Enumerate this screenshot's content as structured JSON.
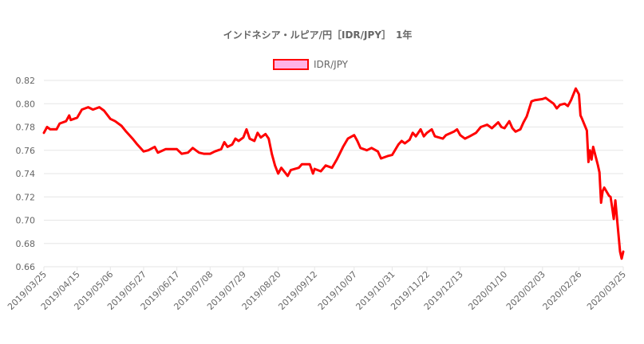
{
  "chart_data": {
    "type": "line",
    "title": "インドネシア・ルピア/円［IDR/JPY］　1年",
    "legend": {
      "placement": "top-center",
      "label": "IDR/JPY"
    },
    "colors": {
      "line": "#ff0000",
      "legend_fill": "#ffb3e6",
      "legend_border": "#ff0000"
    },
    "ylim": [
      0.66,
      0.82
    ],
    "yticks": [
      "0.82",
      "0.80",
      "0.78",
      "0.76",
      "0.74",
      "0.72",
      "0.70",
      "0.68",
      "0.66"
    ],
    "xticks": [
      "2019/03/25",
      "2019/04/15",
      "2019/05/06",
      "2019/05/27",
      "2019/06/17",
      "2019/07/08",
      "2019/07/29",
      "2019/08/20",
      "2019/09/12",
      "2019/10/07",
      "2019/10/31",
      "2019/11/22",
      "2019/12/13",
      "2020/01/10",
      "2020/02/03",
      "2020/02/26",
      "2020/03/25"
    ],
    "grid": true,
    "series": [
      {
        "name": "IDR/JPY",
        "points": [
          [
            "2019/03/25",
            0.775
          ],
          [
            "2019/03/27",
            0.78
          ],
          [
            "2019/03/29",
            0.778
          ],
          [
            "2019/04/02",
            0.778
          ],
          [
            "2019/04/04",
            0.783
          ],
          [
            "2019/04/08",
            0.785
          ],
          [
            "2019/04/10",
            0.79
          ],
          [
            "2019/04/11",
            0.786
          ],
          [
            "2019/04/15",
            0.788
          ],
          [
            "2019/04/18",
            0.795
          ],
          [
            "2019/04/22",
            0.797
          ],
          [
            "2019/04/25",
            0.795
          ],
          [
            "2019/04/29",
            0.797
          ],
          [
            "2019/05/02",
            0.794
          ],
          [
            "2019/05/06",
            0.787
          ],
          [
            "2019/05/09",
            0.785
          ],
          [
            "2019/05/13",
            0.781
          ],
          [
            "2019/05/16",
            0.776
          ],
          [
            "2019/05/20",
            0.77
          ],
          [
            "2019/05/23",
            0.765
          ],
          [
            "2019/05/27",
            0.759
          ],
          [
            "2019/05/30",
            0.76
          ],
          [
            "2019/06/03",
            0.763
          ],
          [
            "2019/06/05",
            0.758
          ],
          [
            "2019/06/10",
            0.761
          ],
          [
            "2019/06/17",
            0.761
          ],
          [
            "2019/06/20",
            0.757
          ],
          [
            "2019/06/24",
            0.758
          ],
          [
            "2019/06/27",
            0.762
          ],
          [
            "2019/07/01",
            0.758
          ],
          [
            "2019/07/04",
            0.757
          ],
          [
            "2019/07/08",
            0.757
          ],
          [
            "2019/07/11",
            0.759
          ],
          [
            "2019/07/15",
            0.761
          ],
          [
            "2019/07/17",
            0.767
          ],
          [
            "2019/07/19",
            0.763
          ],
          [
            "2019/07/22",
            0.765
          ],
          [
            "2019/07/24",
            0.77
          ],
          [
            "2019/07/26",
            0.768
          ],
          [
            "2019/07/29",
            0.771
          ],
          [
            "2019/07/31",
            0.778
          ],
          [
            "2019/08/02",
            0.77
          ],
          [
            "2019/08/05",
            0.768
          ],
          [
            "2019/08/07",
            0.775
          ],
          [
            "2019/08/09",
            0.771
          ],
          [
            "2019/08/12",
            0.774
          ],
          [
            "2019/08/14",
            0.77
          ],
          [
            "2019/08/16",
            0.757
          ],
          [
            "2019/08/18",
            0.747
          ],
          [
            "2019/08/20",
            0.74
          ],
          [
            "2019/08/22",
            0.745
          ],
          [
            "2019/08/26",
            0.738
          ],
          [
            "2019/08/28",
            0.743
          ],
          [
            "2019/09/02",
            0.745
          ],
          [
            "2019/09/04",
            0.748
          ],
          [
            "2019/09/09",
            0.748
          ],
          [
            "2019/09/11",
            0.74
          ],
          [
            "2019/09/12",
            0.744
          ],
          [
            "2019/09/16",
            0.742
          ],
          [
            "2019/09/19",
            0.747
          ],
          [
            "2019/09/23",
            0.745
          ],
          [
            "2019/09/26",
            0.752
          ],
          [
            "2019/09/30",
            0.763
          ],
          [
            "2019/10/03",
            0.77
          ],
          [
            "2019/10/07",
            0.773
          ],
          [
            "2019/10/09",
            0.768
          ],
          [
            "2019/10/11",
            0.762
          ],
          [
            "2019/10/15",
            0.76
          ],
          [
            "2019/10/18",
            0.762
          ],
          [
            "2019/10/22",
            0.759
          ],
          [
            "2019/10/24",
            0.753
          ],
          [
            "2019/10/28",
            0.755
          ],
          [
            "2019/10/31",
            0.756
          ],
          [
            "2019/11/04",
            0.765
          ],
          [
            "2019/11/06",
            0.768
          ],
          [
            "2019/11/08",
            0.766
          ],
          [
            "2019/11/11",
            0.769
          ],
          [
            "2019/11/13",
            0.775
          ],
          [
            "2019/11/15",
            0.772
          ],
          [
            "2019/11/18",
            0.778
          ],
          [
            "2019/11/20",
            0.772
          ],
          [
            "2019/11/22",
            0.775
          ],
          [
            "2019/11/25",
            0.778
          ],
          [
            "2019/11/27",
            0.772
          ],
          [
            "2019/12/02",
            0.77
          ],
          [
            "2019/12/04",
            0.773
          ],
          [
            "2019/12/09",
            0.776
          ],
          [
            "2019/12/11",
            0.778
          ],
          [
            "2019/12/13",
            0.773
          ],
          [
            "2019/12/16",
            0.77
          ],
          [
            "2019/12/19",
            0.772
          ],
          [
            "2019/12/23",
            0.775
          ],
          [
            "2019/12/26",
            0.78
          ],
          [
            "2019/12/30",
            0.782
          ],
          [
            "2020/01/02",
            0.779
          ],
          [
            "2020/01/06",
            0.784
          ],
          [
            "2020/01/08",
            0.78
          ],
          [
            "2020/01/10",
            0.779
          ],
          [
            "2020/01/13",
            0.785
          ],
          [
            "2020/01/15",
            0.779
          ],
          [
            "2020/01/17",
            0.776
          ],
          [
            "2020/01/20",
            0.778
          ],
          [
            "2020/01/22",
            0.784
          ],
          [
            "2020/01/24",
            0.789
          ],
          [
            "2020/01/27",
            0.802
          ],
          [
            "2020/01/29",
            0.803
          ],
          [
            "2020/02/03",
            0.804
          ],
          [
            "2020/02/05",
            0.805
          ],
          [
            "2020/02/07",
            0.803
          ],
          [
            "2020/02/10",
            0.8
          ],
          [
            "2020/02/12",
            0.796
          ],
          [
            "2020/02/14",
            0.799
          ],
          [
            "2020/02/17",
            0.8
          ],
          [
            "2020/02/19",
            0.798
          ],
          [
            "2020/02/21",
            0.803
          ],
          [
            "2020/02/24",
            0.813
          ],
          [
            "2020/02/26",
            0.808
          ],
          [
            "2020/02/27",
            0.79
          ],
          [
            "2020/02/28",
            0.787
          ],
          [
            "2020/03/02",
            0.777
          ],
          [
            "2020/03/03",
            0.75
          ],
          [
            "2020/03/04",
            0.76
          ],
          [
            "2020/03/05",
            0.752
          ],
          [
            "2020/03/06",
            0.763
          ],
          [
            "2020/03/09",
            0.747
          ],
          [
            "2020/03/10",
            0.741
          ],
          [
            "2020/03/11",
            0.715
          ],
          [
            "2020/03/12",
            0.725
          ],
          [
            "2020/03/13",
            0.728
          ],
          [
            "2020/03/16",
            0.721
          ],
          [
            "2020/03/17",
            0.72
          ],
          [
            "2020/03/18",
            0.711
          ],
          [
            "2020/03/19",
            0.701
          ],
          [
            "2020/03/20",
            0.717
          ],
          [
            "2020/03/23",
            0.673
          ],
          [
            "2020/03/24",
            0.667
          ],
          [
            "2020/03/25",
            0.673
          ]
        ]
      }
    ]
  }
}
